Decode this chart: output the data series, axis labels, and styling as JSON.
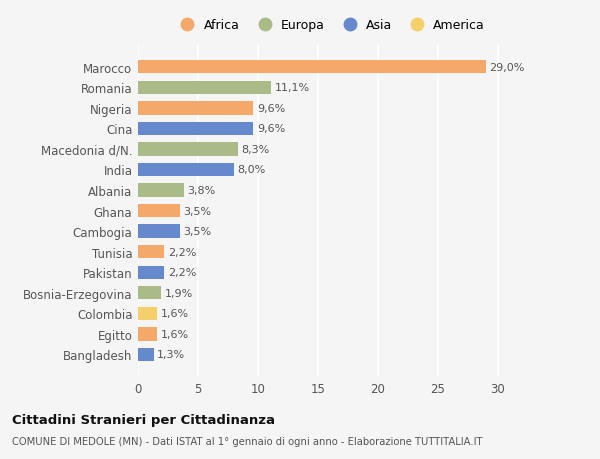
{
  "categories": [
    "Marocco",
    "Romania",
    "Nigeria",
    "Cina",
    "Macedonia d/N.",
    "India",
    "Albania",
    "Ghana",
    "Cambogia",
    "Tunisia",
    "Pakistan",
    "Bosnia-Erzegovina",
    "Colombia",
    "Egitto",
    "Bangladesh"
  ],
  "values": [
    29.0,
    11.1,
    9.6,
    9.6,
    8.3,
    8.0,
    3.8,
    3.5,
    3.5,
    2.2,
    2.2,
    1.9,
    1.6,
    1.6,
    1.3
  ],
  "continents": [
    "Africa",
    "Europa",
    "Africa",
    "Asia",
    "Europa",
    "Asia",
    "Europa",
    "Africa",
    "Asia",
    "Africa",
    "Asia",
    "Europa",
    "America",
    "Africa",
    "Asia"
  ],
  "colors": {
    "Africa": "#F4A96A",
    "Europa": "#AABB88",
    "Asia": "#6688CC",
    "America": "#F5D06A"
  },
  "legend_order": [
    "Africa",
    "Europa",
    "Asia",
    "America"
  ],
  "title": "Cittadini Stranieri per Cittadinanza",
  "subtitle": "COMUNE DI MEDOLE (MN) - Dati ISTAT al 1° gennaio di ogni anno - Elaborazione TUTTITALIA.IT",
  "xlim": [
    0,
    32
  ],
  "xticks": [
    0,
    5,
    10,
    15,
    20,
    25,
    30
  ],
  "bg_color": "#F5F5F5",
  "grid_color": "#FFFFFF",
  "label_color": "#555555",
  "value_color": "#555555"
}
